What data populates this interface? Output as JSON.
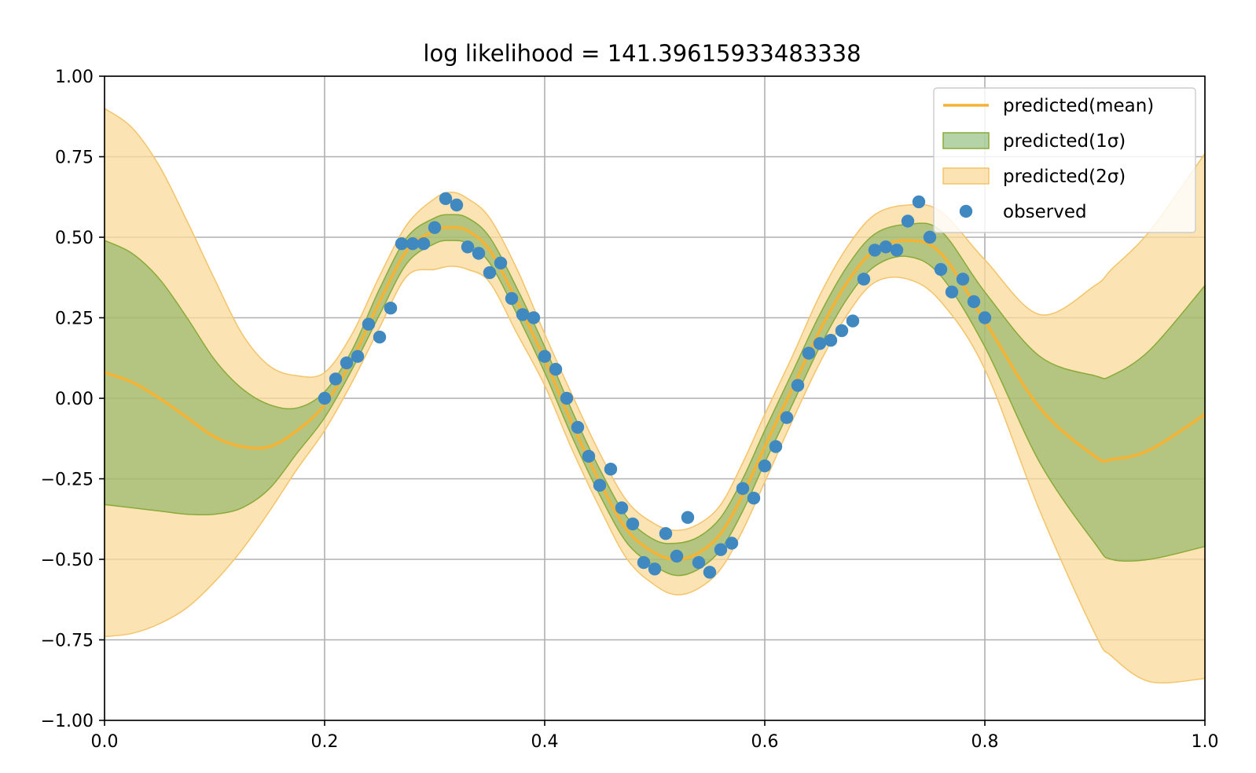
{
  "chart_data": {
    "type": "line",
    "title": "log likelihood = 141.39615933483338",
    "xlabel": "",
    "ylabel": "",
    "xlim": [
      0.0,
      1.0
    ],
    "ylim": [
      -1.0,
      1.0
    ],
    "grid": true,
    "legend_position": "top-right",
    "x_ticks": [
      0.0,
      0.2,
      0.4,
      0.6,
      0.8,
      1.0
    ],
    "x_tick_labels": [
      "0.0",
      "0.2",
      "0.4",
      "0.6",
      "0.8",
      "1.0"
    ],
    "y_ticks": [
      1.0,
      0.75,
      0.5,
      0.25,
      0.0,
      -0.25,
      -0.5,
      -0.75,
      -1.0
    ],
    "y_tick_labels": [
      "1.00",
      "0.75",
      "0.50",
      "0.25",
      "0.00",
      "−0.25",
      "−0.50",
      "−0.75",
      "−1.00"
    ],
    "colors": {
      "mean": "#f5b335",
      "band1": "#6aa84f",
      "band2": "#fbd99a",
      "band2_edge": "#f3c46a",
      "band1_edge": "#8aaa3a",
      "observed": "#3f88c0"
    },
    "legend": [
      {
        "label": "predicted(mean)",
        "kind": "line"
      },
      {
        "label": "predicted(1σ)",
        "kind": "band1"
      },
      {
        "label": "predicted(2σ)",
        "kind": "band2"
      },
      {
        "label": "observed",
        "kind": "scatter"
      }
    ],
    "mean_curve": {
      "x": [
        0.0,
        0.025,
        0.05,
        0.075,
        0.1,
        0.125,
        0.15,
        0.175,
        0.2,
        0.225,
        0.25,
        0.275,
        0.3,
        0.315,
        0.33,
        0.35,
        0.375,
        0.4,
        0.425,
        0.45,
        0.475,
        0.5,
        0.52,
        0.54,
        0.56,
        0.58,
        0.6,
        0.625,
        0.65,
        0.675,
        0.7,
        0.73,
        0.76,
        0.8,
        0.85,
        0.9,
        0.915,
        0.95,
        1.0
      ],
      "y": [
        0.08,
        0.05,
        0.0,
        -0.06,
        -0.12,
        -0.15,
        -0.15,
        -0.1,
        -0.02,
        0.12,
        0.3,
        0.46,
        0.52,
        0.53,
        0.52,
        0.46,
        0.3,
        0.12,
        -0.08,
        -0.26,
        -0.41,
        -0.48,
        -0.5,
        -0.48,
        -0.42,
        -0.3,
        -0.15,
        0.03,
        0.21,
        0.36,
        0.46,
        0.49,
        0.45,
        0.24,
        -0.03,
        -0.18,
        -0.19,
        -0.16,
        -0.05
      ]
    },
    "band_1sigma": {
      "x": [
        0.0,
        0.025,
        0.05,
        0.075,
        0.1,
        0.125,
        0.15,
        0.175,
        0.2,
        0.225,
        0.25,
        0.275,
        0.3,
        0.315,
        0.33,
        0.35,
        0.375,
        0.4,
        0.425,
        0.45,
        0.475,
        0.5,
        0.52,
        0.54,
        0.56,
        0.58,
        0.6,
        0.625,
        0.65,
        0.675,
        0.7,
        0.73,
        0.76,
        0.8,
        0.85,
        0.9,
        0.915,
        0.95,
        1.0
      ],
      "lower": [
        -0.33,
        -0.34,
        -0.35,
        -0.36,
        -0.36,
        -0.34,
        -0.28,
        -0.17,
        -0.06,
        0.09,
        0.26,
        0.42,
        0.48,
        0.49,
        0.48,
        0.42,
        0.26,
        0.08,
        -0.12,
        -0.3,
        -0.45,
        -0.52,
        -0.55,
        -0.53,
        -0.47,
        -0.35,
        -0.2,
        -0.02,
        0.16,
        0.31,
        0.41,
        0.44,
        0.38,
        0.16,
        -0.2,
        -0.45,
        -0.5,
        -0.5,
        -0.46
      ],
      "upper": [
        0.49,
        0.45,
        0.37,
        0.25,
        0.12,
        0.03,
        -0.02,
        -0.03,
        0.02,
        0.15,
        0.34,
        0.5,
        0.56,
        0.57,
        0.56,
        0.5,
        0.34,
        0.16,
        -0.04,
        -0.22,
        -0.37,
        -0.44,
        -0.45,
        -0.43,
        -0.37,
        -0.25,
        -0.1,
        0.08,
        0.26,
        0.41,
        0.51,
        0.54,
        0.52,
        0.33,
        0.13,
        0.07,
        0.07,
        0.15,
        0.35
      ]
    },
    "band_2sigma": {
      "x": [
        0.0,
        0.025,
        0.05,
        0.075,
        0.1,
        0.125,
        0.15,
        0.175,
        0.2,
        0.225,
        0.25,
        0.275,
        0.3,
        0.315,
        0.33,
        0.35,
        0.375,
        0.4,
        0.425,
        0.45,
        0.475,
        0.5,
        0.52,
        0.54,
        0.56,
        0.58,
        0.6,
        0.625,
        0.65,
        0.675,
        0.7,
        0.73,
        0.76,
        0.8,
        0.85,
        0.9,
        0.915,
        0.95,
        1.0
      ],
      "lower": [
        -0.74,
        -0.73,
        -0.7,
        -0.65,
        -0.57,
        -0.47,
        -0.35,
        -0.22,
        -0.1,
        0.05,
        0.22,
        0.38,
        0.4,
        0.41,
        0.4,
        0.36,
        0.2,
        0.04,
        -0.16,
        -0.34,
        -0.5,
        -0.58,
        -0.61,
        -0.59,
        -0.53,
        -0.41,
        -0.26,
        -0.07,
        0.11,
        0.26,
        0.36,
        0.37,
        0.3,
        0.09,
        -0.35,
        -0.73,
        -0.8,
        -0.88,
        -0.87
      ],
      "upper": [
        0.9,
        0.84,
        0.72,
        0.55,
        0.37,
        0.2,
        0.1,
        0.07,
        0.08,
        0.2,
        0.38,
        0.54,
        0.62,
        0.64,
        0.62,
        0.56,
        0.4,
        0.2,
        0.01,
        -0.17,
        -0.32,
        -0.39,
        -0.41,
        -0.39,
        -0.33,
        -0.2,
        -0.05,
        0.13,
        0.32,
        0.47,
        0.57,
        0.6,
        0.58,
        0.43,
        0.26,
        0.35,
        0.4,
        0.52,
        0.76
      ]
    },
    "observed": {
      "x": [
        0.2,
        0.21,
        0.22,
        0.23,
        0.24,
        0.25,
        0.26,
        0.27,
        0.28,
        0.29,
        0.3,
        0.31,
        0.32,
        0.33,
        0.34,
        0.35,
        0.36,
        0.37,
        0.38,
        0.39,
        0.4,
        0.41,
        0.42,
        0.43,
        0.44,
        0.45,
        0.46,
        0.47,
        0.48,
        0.49,
        0.5,
        0.51,
        0.52,
        0.53,
        0.54,
        0.55,
        0.56,
        0.57,
        0.58,
        0.59,
        0.6,
        0.61,
        0.62,
        0.63,
        0.64,
        0.65,
        0.66,
        0.67,
        0.68,
        0.69,
        0.7,
        0.71,
        0.72,
        0.73,
        0.74,
        0.75,
        0.76,
        0.77,
        0.78,
        0.79,
        0.8
      ],
      "y": [
        0.0,
        0.06,
        0.11,
        0.13,
        0.23,
        0.19,
        0.28,
        0.48,
        0.48,
        0.48,
        0.53,
        0.62,
        0.6,
        0.47,
        0.45,
        0.39,
        0.42,
        0.31,
        0.26,
        0.25,
        0.13,
        0.09,
        0.0,
        -0.09,
        -0.18,
        -0.27,
        -0.22,
        -0.34,
        -0.39,
        -0.51,
        -0.53,
        -0.42,
        -0.49,
        -0.37,
        -0.51,
        -0.54,
        -0.47,
        -0.45,
        -0.28,
        -0.31,
        -0.21,
        -0.15,
        -0.06,
        0.04,
        0.14,
        0.17,
        0.18,
        0.21,
        0.24,
        0.37,
        0.46,
        0.47,
        0.46,
        0.55,
        0.61,
        0.5,
        0.4,
        0.33,
        0.37,
        0.3,
        0.25
      ]
    }
  }
}
